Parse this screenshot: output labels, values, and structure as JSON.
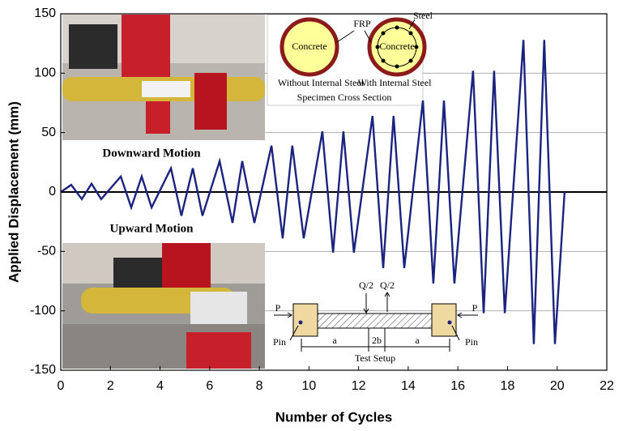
{
  "chart_data": {
    "type": "line",
    "x_label": "Number of Cycles",
    "y_label": "Applied Displacement (mm)",
    "color": "#1a237e",
    "x": [
      0,
      0.42,
      0.85,
      1.24,
      1.63,
      2.42,
      2.84,
      3.26,
      3.66,
      4.44,
      4.86,
      5.32,
      5.71,
      6.4,
      6.92,
      7.31,
      7.8,
      8.49,
      8.94,
      9.33,
      9.79,
      10.54,
      10.97,
      11.39,
      11.81,
      12.56,
      12.99,
      13.41,
      13.84,
      14.59,
      15.01,
      15.44,
      15.86,
      16.61,
      17.04,
      17.46,
      17.89,
      18.64,
      19.06,
      19.48,
      19.91,
      20.3
    ],
    "values": [
      0,
      6,
      -6,
      7,
      -6,
      13,
      -13,
      13,
      -13,
      20,
      -20,
      20,
      -20,
      26,
      -26,
      26,
      -26,
      39,
      -39,
      39,
      -39,
      51,
      -51,
      51,
      -51,
      64,
      -64,
      64,
      -64,
      77,
      -77,
      77,
      -77,
      102,
      -102,
      102,
      -102,
      128,
      -128,
      128,
      -128,
      0
    ],
    "xlim": [
      0,
      22
    ],
    "xticks": [
      0,
      2,
      4,
      6,
      8,
      10,
      12,
      14,
      16,
      18,
      20,
      22
    ],
    "ylim": [
      -150,
      150
    ],
    "yticks": [
      -150,
      -100,
      -50,
      0,
      50,
      100,
      150
    ],
    "grid": true,
    "annotations": [
      "Downward Motion",
      "Upward Motion",
      "Concrete",
      "Concrete",
      "FRP",
      "Steel",
      "Without Internal Steel",
      "With Internal Steel",
      "Specimen Cross Section",
      "Q/2",
      "Q/2",
      "P",
      "P",
      "Pin",
      "Pin",
      "a",
      "2b",
      "a",
      "Test Setup"
    ]
  }
}
